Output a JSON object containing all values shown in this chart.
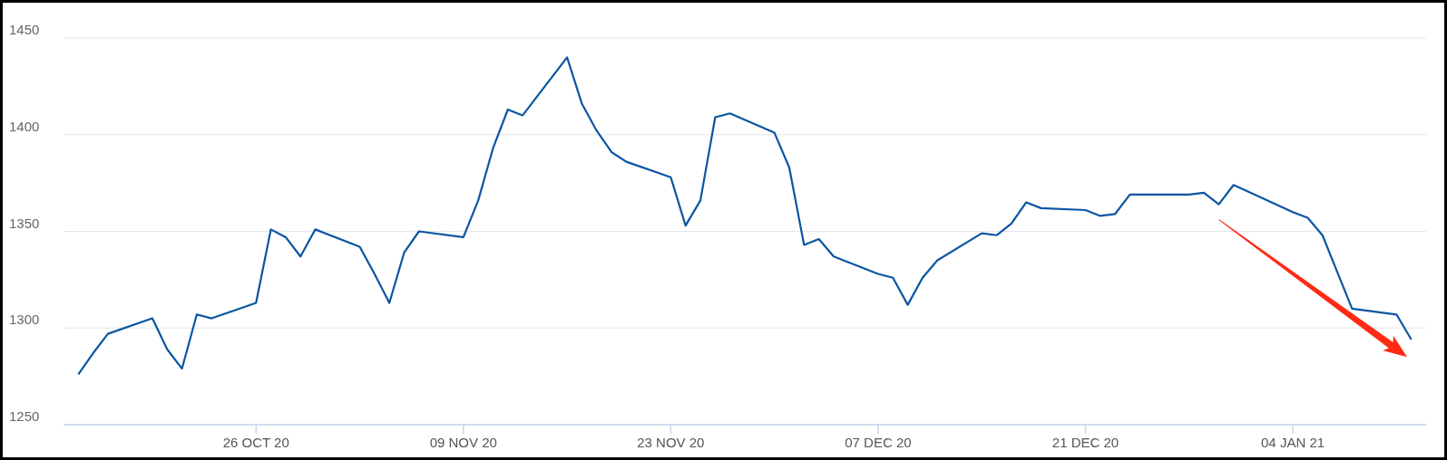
{
  "chart_data": {
    "type": "line",
    "x": [
      "2020-10-14",
      "2020-10-15",
      "2020-10-16",
      "2020-10-19",
      "2020-10-20",
      "2020-10-21",
      "2020-10-22",
      "2020-10-23",
      "2020-10-26",
      "2020-10-27",
      "2020-10-28",
      "2020-10-29",
      "2020-10-30",
      "2020-11-02",
      "2020-11-03",
      "2020-11-04",
      "2020-11-05",
      "2020-11-06",
      "2020-11-09",
      "2020-11-10",
      "2020-11-11",
      "2020-11-12",
      "2020-11-13",
      "2020-11-16",
      "2020-11-17",
      "2020-11-18",
      "2020-11-19",
      "2020-11-20",
      "2020-11-23",
      "2020-11-24",
      "2020-11-25",
      "2020-11-26",
      "2020-11-27",
      "2020-11-30",
      "2020-12-01",
      "2020-12-02",
      "2020-12-03",
      "2020-12-04",
      "2020-12-07",
      "2020-12-08",
      "2020-12-09",
      "2020-12-10",
      "2020-12-11",
      "2020-12-14",
      "2020-12-15",
      "2020-12-16",
      "2020-12-17",
      "2020-12-18",
      "2020-12-21",
      "2020-12-22",
      "2020-12-23",
      "2020-12-24",
      "2020-12-28",
      "2020-12-29",
      "2020-12-30",
      "2020-12-31",
      "2021-01-04",
      "2021-01-05",
      "2021-01-06",
      "2021-01-07",
      "2021-01-08",
      "2021-01-11",
      "2021-01-12"
    ],
    "series": [
      {
        "color": "#0b55a3",
        "values": [
          1276,
          1287,
          1297,
          1305,
          1289,
          1279,
          1307,
          1305,
          1313,
          1351,
          1347,
          1337,
          1351,
          1342,
          1328,
          1313,
          1339,
          1350,
          1347,
          1366,
          1393,
          1413,
          1410,
          1440,
          1416,
          1402,
          1391,
          1386,
          1378,
          1353,
          1366,
          1409,
          1411,
          1401,
          1383,
          1343,
          1346,
          1337,
          1328,
          1326,
          1312,
          1326,
          1335,
          1349,
          1348,
          1354,
          1365,
          1362,
          1361,
          1358,
          1359,
          1369,
          1369,
          1370,
          1364,
          1374,
          1360,
          1357,
          1348,
          1329,
          1310,
          1307,
          1294
        ]
      }
    ],
    "xlim": [
      "2020-10-13",
      "2021-01-13"
    ],
    "xticks": [
      {
        "value": "2020-10-26",
        "label": "26 OCT 20"
      },
      {
        "value": "2020-11-09",
        "label": "09 NOV 20"
      },
      {
        "value": "2020-11-23",
        "label": "23 NOV 20"
      },
      {
        "value": "2020-12-07",
        "label": "07 DEC 20"
      },
      {
        "value": "2020-12-21",
        "label": "21 DEC 20"
      },
      {
        "value": "2021-01-04",
        "label": "04 JAN 21"
      }
    ],
    "ylim": [
      1250,
      1450
    ],
    "yticks": [
      1250,
      1300,
      1350,
      1400,
      1450
    ],
    "grid": "y",
    "marker": "none",
    "line_style": "solid"
  }
}
